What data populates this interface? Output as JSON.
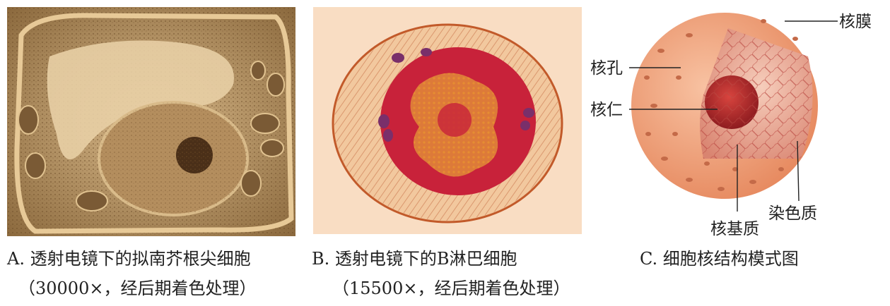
{
  "figure_a": {
    "caption_line1": "A. 透射电镜下的拟南芥根尖细胞",
    "caption_line2": "（30000×，经后期着色处理）"
  },
  "figure_b": {
    "caption_line1": "B. 透射电镜下的B淋巴细胞",
    "caption_line2": "（15500×，经后期着色处理）"
  },
  "figure_c": {
    "caption": "C. 细胞核结构模式图",
    "labels": {
      "nuclear_envelope": "核膜",
      "nuclear_pore": "核孔",
      "nucleolus": "核仁",
      "chromatin": "染色质",
      "nuclear_matrix": "核基质"
    }
  },
  "colors": {
    "micrograph_a_bg": "#c9a97a",
    "micrograph_b_bg": "#f9ddc3",
    "nucleus_shell": "#f0a07a",
    "nucleolus": "#b8282c"
  }
}
